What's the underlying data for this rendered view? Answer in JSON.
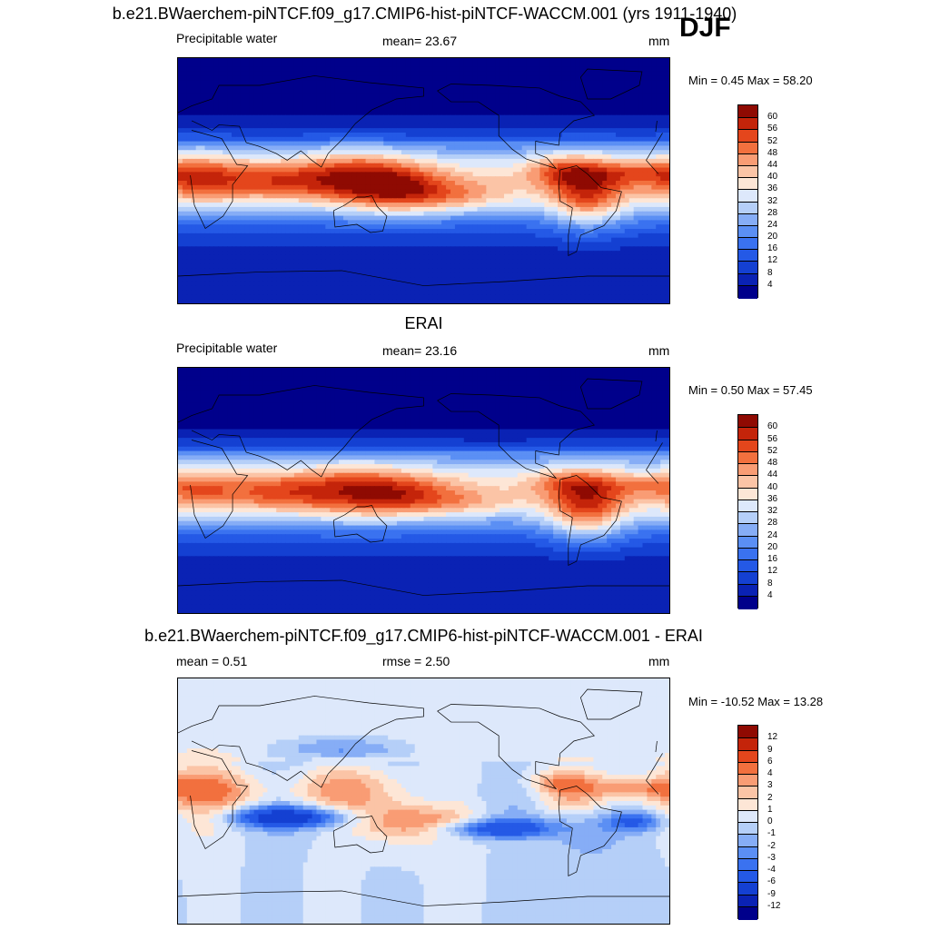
{
  "title": "b.e21.BWaerchem-piNTCF.f09_g17.CMIP6-hist-piNTCF-WACCM.001 (yrs 1911-1940)",
  "season": "DJF",
  "panels": [
    {
      "header": "",
      "left_label": "Precipitable water",
      "center_label": "mean=  23.67",
      "units": "mm",
      "minmax": "Min =   0.45 Max =  58.20",
      "field": "model"
    },
    {
      "header": "ERAI",
      "left_label": "Precipitable water",
      "center_label": "mean=  23.16",
      "units": "mm",
      "minmax": "Min =   0.50 Max =  57.45",
      "field": "obs"
    },
    {
      "header": "b.e21.BWaerchem-piNTCF.f09_g17.CMIP6-hist-piNTCF-WACCM.001 - ERAI",
      "left_label": "mean =   0.51",
      "center_label": "rmse =   2.50",
      "units": "mm",
      "minmax": "Min = -10.52 Max =  13.28",
      "field": "diff"
    }
  ],
  "chart_data": [
    {
      "type": "heatmap",
      "title": "Precipitable water",
      "units": "mm",
      "mean": 23.67,
      "min": 0.45,
      "max": 58.2,
      "colorbar": {
        "levels": [
          4,
          8,
          12,
          16,
          20,
          24,
          28,
          32,
          36,
          40,
          44,
          48,
          52,
          56,
          60
        ],
        "tick_labels": [
          "60",
          "56",
          "52",
          "48",
          "44",
          "40",
          "36",
          "32",
          "28",
          "24",
          "20",
          "16",
          "12",
          "8",
          "4"
        ],
        "colors": [
          "#00008b",
          "#0a22b4",
          "#1440d2",
          "#2459e6",
          "#3a72f0",
          "#5b8ff4",
          "#86adf6",
          "#b5cff8",
          "#dde8fb",
          "#fde6d6",
          "#fbc4a6",
          "#f99c74",
          "#f2703e",
          "#e4461c",
          "#c4240a",
          "#8f0a02"
        ]
      }
    },
    {
      "type": "heatmap",
      "title": "Precipitable water",
      "units": "mm",
      "mean": 23.16,
      "min": 0.5,
      "max": 57.45,
      "colorbar": {
        "levels": [
          4,
          8,
          12,
          16,
          20,
          24,
          28,
          32,
          36,
          40,
          44,
          48,
          52,
          56,
          60
        ],
        "tick_labels": [
          "60",
          "56",
          "52",
          "48",
          "44",
          "40",
          "36",
          "32",
          "28",
          "24",
          "20",
          "16",
          "12",
          "8",
          "4"
        ],
        "colors": [
          "#00008b",
          "#0a22b4",
          "#1440d2",
          "#2459e6",
          "#3a72f0",
          "#5b8ff4",
          "#86adf6",
          "#b5cff8",
          "#dde8fb",
          "#fde6d6",
          "#fbc4a6",
          "#f99c74",
          "#f2703e",
          "#e4461c",
          "#c4240a",
          "#8f0a02"
        ]
      }
    },
    {
      "type": "heatmap",
      "title": "b.e21.BWaerchem-piNTCF.f09_g17.CMIP6-hist-piNTCF-WACCM.001 - ERAI",
      "units": "mm",
      "mean": 0.51,
      "rmse": 2.5,
      "min": -10.52,
      "max": 13.28,
      "colorbar": {
        "levels": [
          -12,
          -9,
          -6,
          -4,
          -3,
          -2,
          -1,
          0,
          1,
          2,
          3,
          4,
          6,
          9,
          12
        ],
        "tick_labels": [
          "12",
          "9",
          "6",
          "4",
          "3",
          "2",
          "1",
          "0",
          "-1",
          "-2",
          "-3",
          "-4",
          "-6",
          "-9",
          "-12"
        ],
        "colors": [
          "#00008b",
          "#0a22b4",
          "#1440d2",
          "#2459e6",
          "#3a72f0",
          "#5b8ff4",
          "#86adf6",
          "#b5cff8",
          "#dde8fb",
          "#fde6d6",
          "#fbc4a6",
          "#f99c74",
          "#f2703e",
          "#e4461c",
          "#c4240a",
          "#8f0a02"
        ]
      }
    }
  ]
}
